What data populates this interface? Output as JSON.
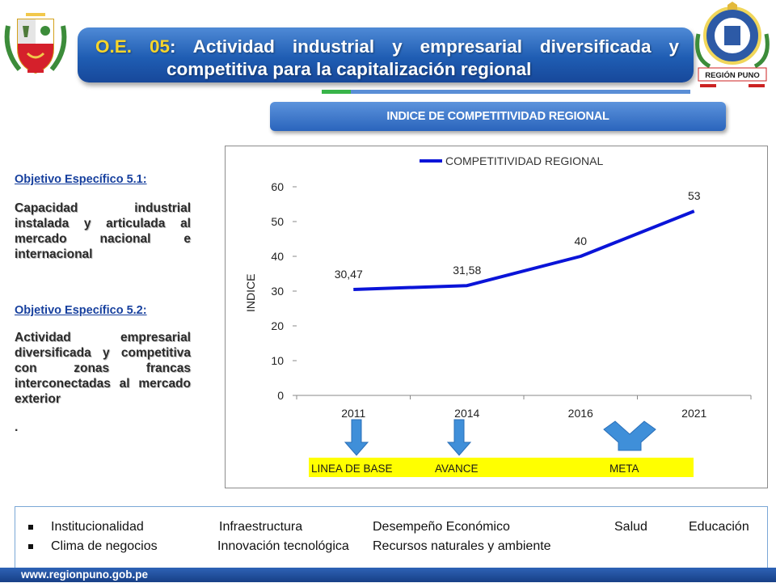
{
  "header": {
    "title_prefix": "O.E. 05",
    "title_rest": ": Actividad industrial y empresarial diversificada y",
    "title_line2": "competitiva para la capitalización regional",
    "logo_right_text": "REGIÓN PUNO",
    "subtitle": "INDICE DE COMPETITIVIDAD REGIONAL"
  },
  "left": {
    "obj1_title": "Objetivo Específico 5.1:",
    "obj1_text": "Capacidad industrial instalada y articulada al mercado nacional e internacional",
    "obj2_title": "Objetivo Específico 5.2:",
    "obj2_text": "Actividad empresarial diversificada y competitiva con zonas francas interconectadas al mercado exterior",
    "obj2_dot": "."
  },
  "chart_data": {
    "type": "line",
    "categories": [
      "2011",
      "2014",
      "2016",
      "2021"
    ],
    "series": [
      {
        "name": "COMPETITIVIDAD REGIONAL",
        "values": [
          30.47,
          31.58,
          40,
          53
        ],
        "color": "#0a14d8"
      }
    ],
    "data_labels": [
      "30,47",
      "31,58",
      "40",
      "53"
    ],
    "ylabel": "INDICE",
    "xlabel": "",
    "ylim": [
      0,
      60
    ],
    "yticks": [
      "0",
      "10",
      "20",
      "30",
      "40",
      "50",
      "60"
    ],
    "grid": false,
    "legend": "top",
    "annotations": {
      "base": "LINEA DE BASE",
      "progress": "AVANCE",
      "goal": "META",
      "band_color": "#ffff00",
      "arrow_color": "#3f8fd9"
    }
  },
  "bottom": {
    "row1": [
      "Institucionalidad",
      "Infraestructura",
      "Desempeño Económico",
      "Salud",
      "Educación"
    ],
    "row2": [
      "Clima de negocios",
      "Innovación tecnológica",
      "Recursos naturales y ambiente"
    ]
  },
  "footer": {
    "url": "www.regionpuno.gob.pe"
  }
}
